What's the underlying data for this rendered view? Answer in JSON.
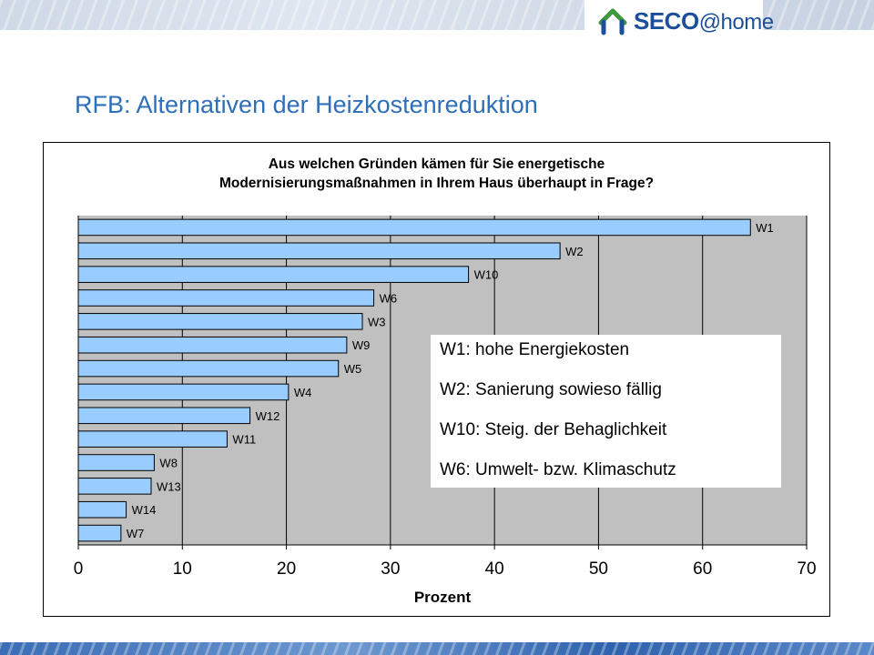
{
  "header": {
    "logo_main": "SECO",
    "logo_suffix": "@home"
  },
  "slide_title": "RFB: Alternativen der Heizkostenreduktion",
  "legend_notes": [
    "W1: hohe Energiekosten",
    "W2: Sanierung sowieso fällig",
    "W10: Steig. der Behaglichkeit",
    "W6: Umwelt- bzw. Klimaschutz"
  ],
  "colors": {
    "title": "#2e6fb7",
    "bar_fill": "#99ccff",
    "plot_bg": "#c0c0c0",
    "logo_blue": "#1b4f9c",
    "logo_green": "#3c9a3c"
  },
  "chart_data": {
    "type": "bar",
    "orientation": "horizontal",
    "title_line1": "Aus welchen Gründen kämen für Sie energetische",
    "title_line2": "Modernisierungsmaßnahmen in Ihrem Haus überhaupt in Frage?",
    "xlabel": "Prozent",
    "ylabel": "",
    "xlim": [
      0,
      70
    ],
    "xticks": [
      "0",
      "10",
      "20",
      "30",
      "40",
      "50",
      "60",
      "70"
    ],
    "grid": "vertical",
    "categories": [
      "W1",
      "W2",
      "W10",
      "W6",
      "W3",
      "W9",
      "W5",
      "W4",
      "W12",
      "W11",
      "W8",
      "W13",
      "W14",
      "W7"
    ],
    "values": [
      64.6,
      46.3,
      37.5,
      28.4,
      27.3,
      25.8,
      25.0,
      20.2,
      16.5,
      14.3,
      7.3,
      7.0,
      4.6,
      4.1
    ]
  }
}
